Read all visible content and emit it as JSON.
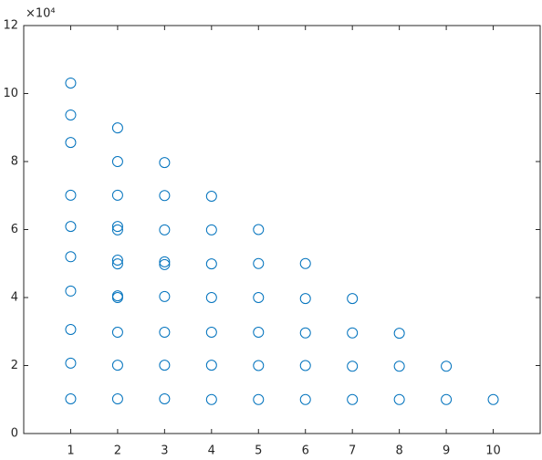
{
  "chart_data": {
    "type": "scatter",
    "y_exponent_label": "×10⁴",
    "series": [
      {
        "color": "#0072bd",
        "x": [
          1,
          1,
          1,
          1,
          1,
          1,
          1,
          1,
          1,
          1,
          2,
          2,
          2,
          2,
          2,
          2,
          2,
          2,
          2,
          2,
          2,
          2,
          3,
          3,
          3,
          3,
          3,
          3,
          3,
          3,
          3,
          4,
          4,
          4,
          4,
          4,
          4,
          4,
          5,
          5,
          5,
          5,
          5,
          5,
          6,
          6,
          6,
          6,
          6,
          7,
          7,
          7,
          7,
          8,
          8,
          8,
          9,
          9,
          10
        ],
        "values": [
          10.31,
          9.37,
          8.56,
          7.01,
          6.09,
          5.2,
          4.19,
          3.06,
          2.07,
          1.02,
          8.99,
          8.0,
          7.01,
          6.09,
          5.99,
          5.1,
          4.99,
          4.05,
          4.0,
          2.98,
          2.01,
          1.02,
          7.97,
          7.0,
          5.99,
          5.05,
          4.97,
          4.03,
          2.98,
          2.01,
          1.02,
          6.98,
          5.99,
          4.99,
          4.0,
          2.98,
          2.01,
          1.0,
          6.0,
          5.0,
          4.0,
          2.98,
          2.0,
          1.0,
          5.0,
          3.97,
          2.96,
          2.0,
          1.0,
          3.97,
          2.96,
          1.98,
          1.0,
          2.95,
          1.98,
          1.0,
          1.98,
          1.0,
          1.0
        ]
      }
    ],
    "xlim": [
      0,
      11
    ],
    "xticks": [
      1,
      2,
      3,
      4,
      5,
      6,
      7,
      8,
      9,
      10
    ],
    "ylim": [
      0,
      12
    ],
    "yticks": [
      0,
      2,
      4,
      6,
      8,
      10,
      12
    ],
    "grid": false
  }
}
